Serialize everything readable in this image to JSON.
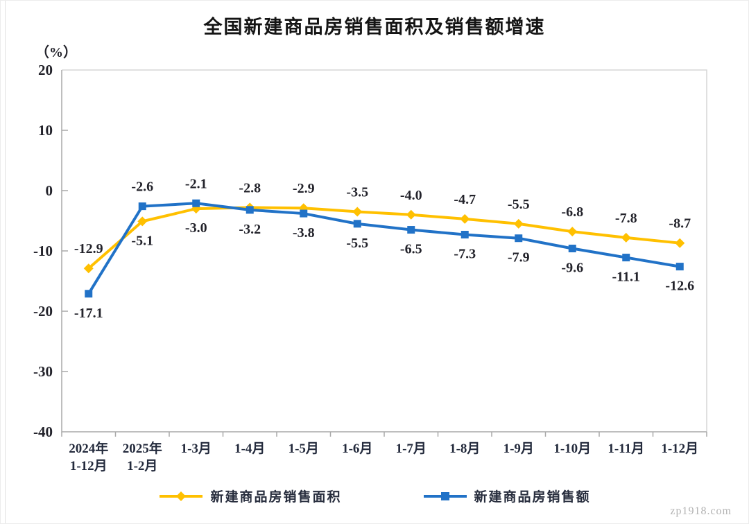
{
  "page": {
    "watermark": "zp1918.com"
  },
  "chart_data": {
    "type": "line",
    "title": "全国新建商品房销售面积及销售额增速",
    "unit_label": "（%）",
    "categories": [
      [
        "2024年",
        "1-12月"
      ],
      [
        "2025年",
        "1-2月"
      ],
      [
        "1-3月"
      ],
      [
        "1-4月"
      ],
      [
        "1-5月"
      ],
      [
        "1-6月"
      ],
      [
        "1-7月"
      ],
      [
        "1-8月"
      ],
      [
        "1-9月"
      ],
      [
        "1-10月"
      ],
      [
        "1-11月"
      ],
      [
        "1-12月"
      ]
    ],
    "ylim": [
      -40,
      20
    ],
    "yticks": [
      20,
      10,
      0,
      -10,
      -20,
      -30,
      -40
    ],
    "grid": false,
    "legend_position": "bottom",
    "axis_color": "#a9a9a9",
    "border_color": "#d6d6d6",
    "tick_label_color": "#23232b",
    "category_label_color": "#232a3c",
    "data_label_color": "#23232b",
    "series": [
      {
        "name": "新建商品房销售面积",
        "color": "#FFC000",
        "marker": "diamond",
        "values": [
          -12.9,
          -5.1,
          -3.0,
          -2.8,
          -2.9,
          -3.5,
          -4.0,
          -4.7,
          -5.5,
          -6.8,
          -7.8,
          -8.7
        ],
        "label_side": [
          "above",
          "below",
          "below",
          "above",
          "above",
          "above",
          "above",
          "above",
          "above",
          "above",
          "above",
          "above"
        ]
      },
      {
        "name": "新建商品房销售额",
        "color": "#2172C7",
        "marker": "square",
        "values": [
          -17.1,
          -2.6,
          -2.1,
          -3.2,
          -3.8,
          -5.5,
          -6.5,
          -7.3,
          -7.9,
          -9.6,
          -11.1,
          -12.6
        ],
        "label_side": [
          "below",
          "above",
          "above",
          "below",
          "below",
          "below",
          "below",
          "below",
          "below",
          "below",
          "below",
          "below"
        ]
      }
    ]
  }
}
